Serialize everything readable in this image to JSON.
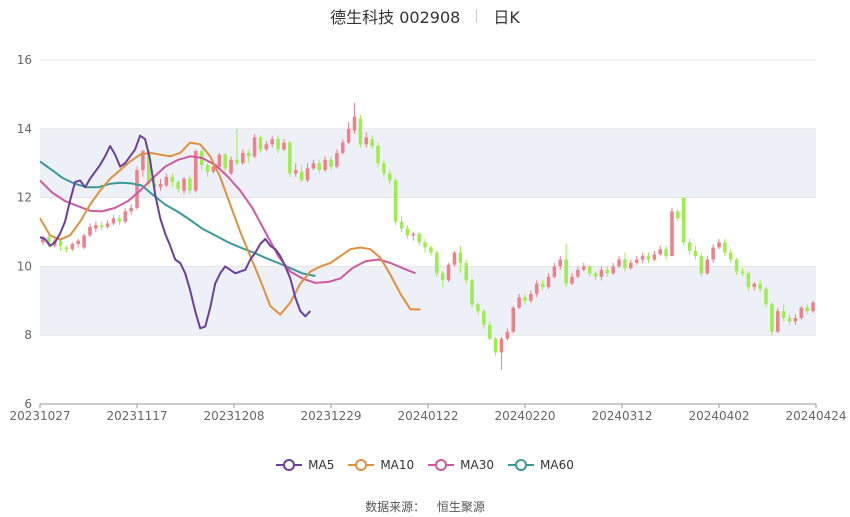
{
  "header": {
    "title": "德生科技 002908",
    "period": "日K"
  },
  "source": {
    "label": "数据来源：",
    "name": "恒生聚源"
  },
  "colors": {
    "up": "#f07f8c",
    "down": "#9ced4d",
    "ma5": "#6a3fa0",
    "ma10": "#e0913e",
    "ma30": "#d0589f",
    "ma60": "#3a9a9a",
    "band": "#eef0f7",
    "grid": "#e5e5e5"
  },
  "chart_data": {
    "type": "candlestick",
    "ylim": [
      6,
      16
    ],
    "yticks": [
      6,
      8,
      10,
      12,
      14,
      16
    ],
    "xticks": [
      "20231027",
      "20231117",
      "20231208",
      "20231229",
      "20240122",
      "20240220",
      "20240312",
      "20240402",
      "20240424"
    ],
    "legend": [
      "MA5",
      "MA10",
      "MA30",
      "MA60"
    ],
    "candles": [
      [
        10.7,
        10.85,
        10.62,
        10.9
      ],
      [
        10.85,
        10.65,
        10.55,
        10.9
      ],
      [
        10.6,
        10.75,
        10.55,
        10.8
      ],
      [
        10.75,
        10.6,
        10.45,
        10.8
      ],
      [
        10.55,
        10.5,
        10.4,
        10.6
      ],
      [
        10.5,
        10.65,
        10.45,
        10.7
      ],
      [
        10.65,
        10.75,
        10.55,
        10.8
      ],
      [
        10.55,
        10.9,
        10.5,
        10.95
      ],
      [
        10.9,
        11.15,
        10.85,
        11.25
      ],
      [
        11.1,
        11.2,
        11.0,
        11.3
      ],
      [
        11.2,
        11.15,
        11.05,
        11.3
      ],
      [
        11.15,
        11.25,
        11.1,
        11.35
      ],
      [
        11.25,
        11.4,
        11.2,
        11.5
      ],
      [
        11.4,
        11.3,
        11.2,
        11.5
      ],
      [
        11.3,
        11.6,
        11.25,
        11.7
      ],
      [
        11.6,
        11.7,
        11.5,
        11.8
      ],
      [
        11.7,
        12.8,
        11.65,
        12.9
      ],
      [
        12.8,
        13.35,
        12.6,
        13.4
      ],
      [
        13.35,
        12.4,
        12.3,
        13.4
      ],
      [
        12.4,
        12.3,
        12.2,
        12.6
      ],
      [
        12.3,
        12.4,
        12.2,
        12.55
      ],
      [
        12.35,
        12.6,
        12.3,
        12.7
      ],
      [
        12.6,
        12.45,
        12.3,
        12.7
      ],
      [
        12.45,
        12.25,
        12.15,
        12.5
      ],
      [
        12.2,
        12.55,
        12.1,
        12.6
      ],
      [
        12.55,
        12.2,
        12.1,
        12.65
      ],
      [
        12.2,
        13.35,
        12.15,
        13.4
      ],
      [
        13.35,
        12.95,
        12.8,
        13.4
      ],
      [
        12.95,
        12.75,
        12.6,
        13.0
      ],
      [
        12.75,
        12.9,
        12.7,
        13.0
      ],
      [
        12.9,
        13.25,
        12.85,
        13.3
      ],
      [
        13.25,
        12.85,
        12.75,
        13.3
      ],
      [
        12.7,
        13.1,
        12.65,
        13.2
      ],
      [
        13.1,
        13.0,
        12.95,
        14.0
      ],
      [
        13.0,
        13.3,
        12.95,
        13.4
      ],
      [
        13.3,
        13.2,
        13.0,
        13.4
      ],
      [
        13.2,
        13.75,
        13.15,
        13.85
      ],
      [
        13.75,
        13.4,
        13.3,
        13.8
      ],
      [
        13.4,
        13.55,
        13.35,
        13.65
      ],
      [
        13.55,
        13.7,
        13.45,
        13.8
      ],
      [
        13.7,
        13.4,
        13.3,
        13.8
      ],
      [
        13.4,
        13.6,
        13.35,
        13.7
      ],
      [
        13.6,
        12.7,
        12.6,
        13.65
      ],
      [
        12.7,
        12.8,
        12.6,
        13.0
      ],
      [
        12.75,
        12.5,
        12.45,
        12.95
      ],
      [
        12.5,
        12.85,
        12.45,
        13.0
      ],
      [
        12.85,
        13.0,
        12.8,
        13.1
      ],
      [
        13.0,
        12.8,
        12.7,
        13.1
      ],
      [
        12.8,
        13.1,
        12.75,
        13.2
      ],
      [
        13.1,
        12.9,
        12.8,
        13.2
      ],
      [
        12.9,
        13.3,
        12.85,
        13.4
      ],
      [
        13.3,
        13.6,
        13.25,
        13.7
      ],
      [
        13.6,
        14.0,
        13.55,
        14.2
      ],
      [
        13.95,
        14.35,
        13.85,
        14.75
      ],
      [
        14.3,
        13.55,
        13.45,
        14.4
      ],
      [
        13.55,
        13.75,
        13.45,
        13.9
      ],
      [
        13.7,
        13.5,
        13.4,
        13.8
      ],
      [
        13.5,
        13.0,
        12.9,
        13.6
      ],
      [
        13.0,
        12.7,
        12.6,
        13.1
      ],
      [
        12.7,
        12.5,
        12.4,
        12.8
      ],
      [
        12.5,
        11.3,
        11.2,
        12.55
      ],
      [
        11.3,
        11.1,
        11.0,
        11.45
      ],
      [
        11.1,
        10.9,
        10.8,
        11.2
      ],
      [
        10.9,
        10.95,
        10.75,
        11.0
      ],
      [
        10.95,
        10.7,
        10.6,
        11.0
      ],
      [
        10.7,
        10.55,
        10.4,
        10.8
      ],
      [
        10.55,
        10.4,
        10.3,
        10.6
      ],
      [
        10.4,
        9.8,
        9.7,
        10.45
      ],
      [
        9.8,
        9.6,
        9.4,
        9.85
      ],
      [
        9.6,
        10.05,
        9.55,
        10.1
      ],
      [
        10.05,
        10.4,
        10.0,
        10.45
      ],
      [
        10.4,
        10.1,
        9.8,
        10.6
      ],
      [
        10.1,
        9.6,
        9.5,
        10.2
      ],
      [
        9.6,
        8.9,
        8.8,
        9.65
      ],
      [
        8.9,
        8.7,
        8.6,
        8.95
      ],
      [
        8.7,
        8.3,
        8.2,
        8.75
      ],
      [
        8.3,
        7.9,
        7.85,
        8.4
      ],
      [
        7.9,
        7.5,
        7.4,
        7.95
      ],
      [
        7.5,
        7.9,
        7.0,
        7.95
      ],
      [
        7.9,
        8.1,
        7.85,
        8.2
      ],
      [
        8.1,
        8.8,
        8.05,
        8.85
      ],
      [
        8.8,
        9.1,
        8.75,
        9.2
      ],
      [
        9.1,
        9.0,
        8.9,
        9.2
      ],
      [
        9.0,
        9.2,
        8.95,
        9.3
      ],
      [
        9.2,
        9.5,
        9.1,
        9.6
      ],
      [
        9.5,
        9.4,
        9.3,
        9.6
      ],
      [
        9.4,
        9.7,
        9.35,
        9.8
      ],
      [
        9.7,
        10.0,
        9.65,
        10.1
      ],
      [
        10.0,
        10.2,
        9.9,
        10.3
      ],
      [
        10.2,
        9.5,
        9.4,
        10.65
      ],
      [
        9.5,
        9.7,
        9.45,
        9.8
      ],
      [
        9.7,
        9.9,
        9.65,
        10.0
      ],
      [
        9.9,
        10.0,
        9.85,
        10.1
      ],
      [
        10.0,
        9.8,
        9.7,
        10.05
      ],
      [
        9.8,
        9.7,
        9.6,
        9.85
      ],
      [
        9.7,
        9.9,
        9.6,
        10.0
      ],
      [
        9.9,
        9.8,
        9.7,
        10.0
      ],
      [
        9.8,
        10.0,
        9.75,
        10.1
      ],
      [
        10.0,
        10.2,
        9.95,
        10.3
      ],
      [
        10.2,
        9.95,
        9.85,
        10.4
      ],
      [
        9.95,
        10.1,
        9.9,
        10.2
      ],
      [
        10.1,
        10.2,
        10.05,
        10.3
      ],
      [
        10.2,
        10.3,
        10.1,
        10.4
      ],
      [
        10.3,
        10.2,
        10.1,
        10.4
      ],
      [
        10.2,
        10.35,
        10.15,
        10.45
      ],
      [
        10.35,
        10.5,
        10.3,
        10.6
      ],
      [
        10.5,
        10.3,
        10.2,
        10.6
      ],
      [
        10.3,
        11.6,
        10.3,
        11.7
      ],
      [
        11.6,
        11.4,
        11.3,
        11.65
      ],
      [
        12.0,
        10.7,
        10.6,
        12.0
      ],
      [
        10.7,
        10.45,
        10.35,
        10.8
      ],
      [
        10.45,
        10.3,
        10.2,
        10.6
      ],
      [
        10.3,
        9.8,
        9.7,
        10.4
      ],
      [
        9.8,
        10.2,
        9.75,
        10.3
      ],
      [
        10.2,
        10.55,
        10.1,
        10.65
      ],
      [
        10.55,
        10.7,
        10.5,
        10.8
      ],
      [
        10.7,
        10.4,
        10.3,
        10.8
      ],
      [
        10.4,
        10.2,
        10.1,
        10.5
      ],
      [
        10.2,
        9.85,
        9.75,
        10.25
      ],
      [
        9.85,
        9.8,
        9.7,
        9.95
      ],
      [
        9.8,
        9.4,
        9.3,
        9.85
      ],
      [
        9.4,
        9.5,
        9.3,
        9.55
      ],
      [
        9.5,
        9.35,
        9.25,
        9.6
      ],
      [
        9.35,
        8.9,
        8.8,
        9.4
      ],
      [
        8.9,
        8.1,
        8.0,
        8.95
      ],
      [
        8.1,
        8.7,
        8.05,
        8.8
      ],
      [
        8.7,
        8.5,
        8.4,
        8.9
      ],
      [
        8.5,
        8.4,
        8.3,
        8.6
      ],
      [
        8.4,
        8.5,
        8.3,
        8.6
      ],
      [
        8.5,
        8.8,
        8.45,
        8.85
      ],
      [
        8.8,
        8.7,
        8.6,
        8.9
      ],
      [
        8.7,
        8.95,
        8.65,
        9.0
      ]
    ],
    "ma60": [
      [
        0,
        13.05
      ],
      [
        12,
        12.8
      ],
      [
        22,
        12.58
      ],
      [
        35,
        12.4
      ],
      [
        47,
        12.3
      ],
      [
        58,
        12.3
      ],
      [
        70,
        12.4
      ],
      [
        80,
        12.43
      ],
      [
        90,
        12.42
      ],
      [
        102,
        12.35
      ],
      [
        112,
        12.1
      ],
      [
        125,
        11.8
      ],
      [
        138,
        11.58
      ],
      [
        150,
        11.35
      ],
      [
        162,
        11.1
      ],
      [
        175,
        10.9
      ],
      [
        188,
        10.7
      ],
      [
        200,
        10.55
      ],
      [
        212,
        10.42
      ],
      [
        225,
        10.25
      ],
      [
        238,
        10.1
      ],
      [
        250,
        9.95
      ],
      [
        262,
        9.8
      ],
      [
        275,
        9.72
      ]
    ],
    "ma30": [
      [
        0,
        12.5
      ],
      [
        12,
        12.15
      ],
      [
        25,
        11.9
      ],
      [
        38,
        11.75
      ],
      [
        50,
        11.62
      ],
      [
        62,
        11.6
      ],
      [
        75,
        11.7
      ],
      [
        88,
        11.9
      ],
      [
        100,
        12.2
      ],
      [
        112,
        12.55
      ],
      [
        125,
        12.9
      ],
      [
        138,
        13.1
      ],
      [
        150,
        13.2
      ],
      [
        162,
        13.15
      ],
      [
        175,
        12.95
      ],
      [
        188,
        12.6
      ],
      [
        200,
        12.2
      ],
      [
        212,
        11.7
      ],
      [
        225,
        11.0
      ],
      [
        238,
        10.3
      ],
      [
        250,
        9.85
      ],
      [
        262,
        9.65
      ],
      [
        275,
        9.52
      ],
      [
        288,
        9.55
      ],
      [
        300,
        9.65
      ],
      [
        312,
        9.95
      ],
      [
        325,
        10.15
      ],
      [
        338,
        10.2
      ],
      [
        350,
        10.1
      ],
      [
        362,
        9.95
      ],
      [
        375,
        9.8
      ]
    ],
    "ma10": [
      [
        0,
        11.4
      ],
      [
        10,
        10.9
      ],
      [
        20,
        10.78
      ],
      [
        30,
        10.9
      ],
      [
        40,
        11.3
      ],
      [
        50,
        11.8
      ],
      [
        60,
        12.2
      ],
      [
        70,
        12.55
      ],
      [
        80,
        12.8
      ],
      [
        90,
        13.05
      ],
      [
        100,
        13.25
      ],
      [
        110,
        13.3
      ],
      [
        120,
        13.25
      ],
      [
        130,
        13.2
      ],
      [
        140,
        13.3
      ],
      [
        150,
        13.6
      ],
      [
        160,
        13.55
      ],
      [
        170,
        13.2
      ],
      [
        180,
        12.6
      ],
      [
        190,
        11.8
      ],
      [
        200,
        11.0
      ],
      [
        210,
        10.3
      ],
      [
        220,
        9.6
      ],
      [
        230,
        8.85
      ],
      [
        240,
        8.6
      ],
      [
        250,
        8.95
      ],
      [
        260,
        9.5
      ],
      [
        270,
        9.85
      ],
      [
        280,
        10.0
      ],
      [
        290,
        10.1
      ],
      [
        300,
        10.3
      ],
      [
        310,
        10.5
      ],
      [
        320,
        10.55
      ],
      [
        330,
        10.5
      ],
      [
        340,
        10.25
      ],
      [
        350,
        9.75
      ],
      [
        360,
        9.2
      ],
      [
        370,
        8.75
      ],
      [
        380,
        8.75
      ]
    ],
    "ma5": [
      [
        0,
        10.85
      ],
      [
        5,
        10.8
      ],
      [
        10,
        10.6
      ],
      [
        15,
        10.7
      ],
      [
        20,
        10.95
      ],
      [
        25,
        11.3
      ],
      [
        30,
        11.9
      ],
      [
        35,
        12.45
      ],
      [
        40,
        12.5
      ],
      [
        45,
        12.3
      ],
      [
        50,
        12.55
      ],
      [
        55,
        12.75
      ],
      [
        60,
        12.95
      ],
      [
        65,
        13.2
      ],
      [
        70,
        13.5
      ],
      [
        75,
        13.25
      ],
      [
        80,
        12.9
      ],
      [
        85,
        13.0
      ],
      [
        90,
        13.2
      ],
      [
        95,
        13.4
      ],
      [
        100,
        13.8
      ],
      [
        105,
        13.7
      ],
      [
        110,
        13.1
      ],
      [
        115,
        12.1
      ],
      [
        120,
        11.4
      ],
      [
        125,
        10.95
      ],
      [
        130,
        10.6
      ],
      [
        135,
        10.2
      ],
      [
        140,
        10.1
      ],
      [
        145,
        9.8
      ],
      [
        150,
        9.3
      ],
      [
        155,
        8.7
      ],
      [
        160,
        8.2
      ],
      [
        165,
        8.25
      ],
      [
        170,
        8.8
      ],
      [
        175,
        9.5
      ],
      [
        180,
        9.8
      ],
      [
        185,
        10.0
      ],
      [
        190,
        9.9
      ],
      [
        195,
        9.8
      ],
      [
        200,
        9.85
      ],
      [
        205,
        9.9
      ],
      [
        210,
        10.2
      ],
      [
        215,
        10.4
      ],
      [
        220,
        10.65
      ],
      [
        225,
        10.8
      ],
      [
        230,
        10.6
      ],
      [
        235,
        10.5
      ],
      [
        240,
        10.3
      ],
      [
        245,
        10.0
      ],
      [
        250,
        9.65
      ],
      [
        255,
        9.1
      ],
      [
        260,
        8.7
      ],
      [
        265,
        8.55
      ],
      [
        270,
        8.7
      ]
    ]
  }
}
